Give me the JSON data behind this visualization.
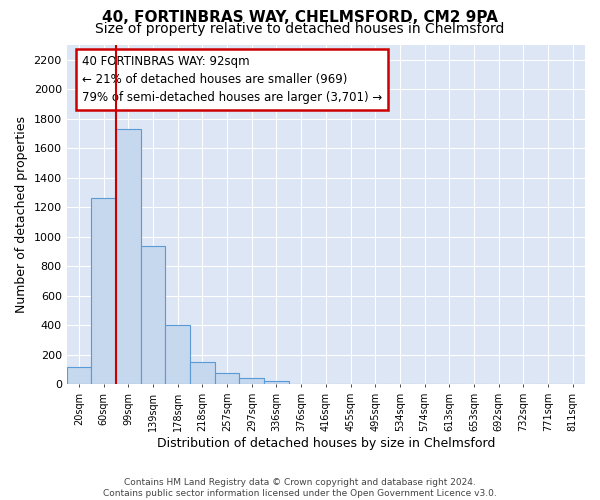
{
  "title": "40, FORTINBRAS WAY, CHELMSFORD, CM2 9PA",
  "subtitle": "Size of property relative to detached houses in Chelmsford",
  "xlabel": "Distribution of detached houses by size in Chelmsford",
  "ylabel": "Number of detached properties",
  "bar_labels": [
    "20sqm",
    "60sqm",
    "99sqm",
    "139sqm",
    "178sqm",
    "218sqm",
    "257sqm",
    "297sqm",
    "336sqm",
    "376sqm",
    "416sqm",
    "455sqm",
    "495sqm",
    "534sqm",
    "574sqm",
    "613sqm",
    "653sqm",
    "692sqm",
    "732sqm",
    "771sqm",
    "811sqm"
  ],
  "bar_values": [
    115,
    1260,
    1730,
    940,
    405,
    150,
    75,
    45,
    25,
    0,
    0,
    0,
    0,
    0,
    0,
    0,
    0,
    0,
    0,
    0,
    0
  ],
  "bar_color": "#c5d8ee",
  "bar_edge_color": "#5b9bd5",
  "ylim": [
    0,
    2300
  ],
  "yticks": [
    0,
    200,
    400,
    600,
    800,
    1000,
    1200,
    1400,
    1600,
    1800,
    2000,
    2200
  ],
  "vline_x": 1.5,
  "vline_color": "#cc0000",
  "annotation_text": "40 FORTINBRAS WAY: 92sqm\n← 21% of detached houses are smaller (969)\n79% of semi-detached houses are larger (3,701) →",
  "annotation_box_color": "#cc0000",
  "footer_text": "Contains HM Land Registry data © Crown copyright and database right 2024.\nContains public sector information licensed under the Open Government Licence v3.0.",
  "background_color": "#ffffff",
  "plot_bg_color": "#dce6f5",
  "grid_color": "#ffffff",
  "title_fontsize": 11,
  "subtitle_fontsize": 10,
  "ylabel_fontsize": 9,
  "xlabel_fontsize": 9,
  "annotation_fontsize": 8.5
}
